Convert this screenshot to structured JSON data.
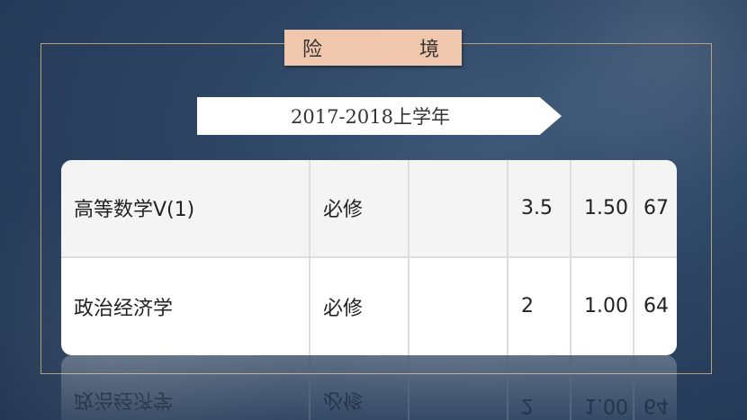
{
  "slide": {
    "title_chars": [
      "险",
      "境"
    ],
    "banner": "2017-2018上学年"
  },
  "table": {
    "rows": [
      [
        "高等数学V(1)",
        "必修",
        "",
        "3.5",
        "1.50",
        "67"
      ],
      [
        "政治经济学",
        "必修",
        "",
        "2",
        "1.00",
        "64"
      ]
    ]
  },
  "colors": {
    "background": "#2c4462",
    "title_box": "#f0c7ac",
    "frame": "#b39f7c"
  }
}
